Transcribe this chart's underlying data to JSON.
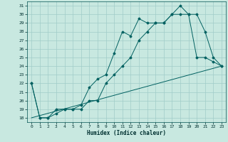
{
  "title": "",
  "xlabel": "Humidex (Indice chaleur)",
  "ylabel": "",
  "background_color": "#c8e8e0",
  "grid_color": "#a0ccc8",
  "line_color": "#006060",
  "xlim": [
    -0.5,
    23.5
  ],
  "ylim": [
    17.5,
    31.5
  ],
  "xticks": [
    0,
    1,
    2,
    3,
    4,
    5,
    6,
    7,
    8,
    9,
    10,
    11,
    12,
    13,
    14,
    15,
    16,
    17,
    18,
    19,
    20,
    21,
    22,
    23
  ],
  "yticks": [
    18,
    19,
    20,
    21,
    22,
    23,
    24,
    25,
    26,
    27,
    28,
    29,
    30,
    31
  ],
  "series1_x": [
    0,
    1,
    2,
    3,
    4,
    5,
    6,
    7,
    8,
    9,
    10,
    11,
    12,
    13,
    14,
    15,
    16,
    17,
    18,
    19,
    20,
    21,
    22,
    23
  ],
  "series1_y": [
    22,
    18,
    18,
    19,
    19,
    19,
    19,
    20,
    20,
    22,
    23,
    24,
    25,
    27,
    28,
    29,
    29,
    30,
    31,
    30,
    30,
    28,
    25,
    24
  ],
  "series2_x": [
    0,
    1,
    2,
    3,
    4,
    5,
    6,
    7,
    8,
    9,
    10,
    11,
    12,
    13,
    14,
    15,
    16,
    17,
    18,
    19,
    20,
    21,
    22,
    23
  ],
  "series2_y": [
    22,
    18,
    18,
    18.5,
    19,
    19,
    19.5,
    21.5,
    22.5,
    23,
    25.5,
    28,
    27.5,
    29.5,
    29,
    29,
    29,
    30,
    30,
    30,
    25,
    25,
    24.5,
    24
  ],
  "series3_x": [
    0,
    23
  ],
  "series3_y": [
    18,
    24
  ]
}
